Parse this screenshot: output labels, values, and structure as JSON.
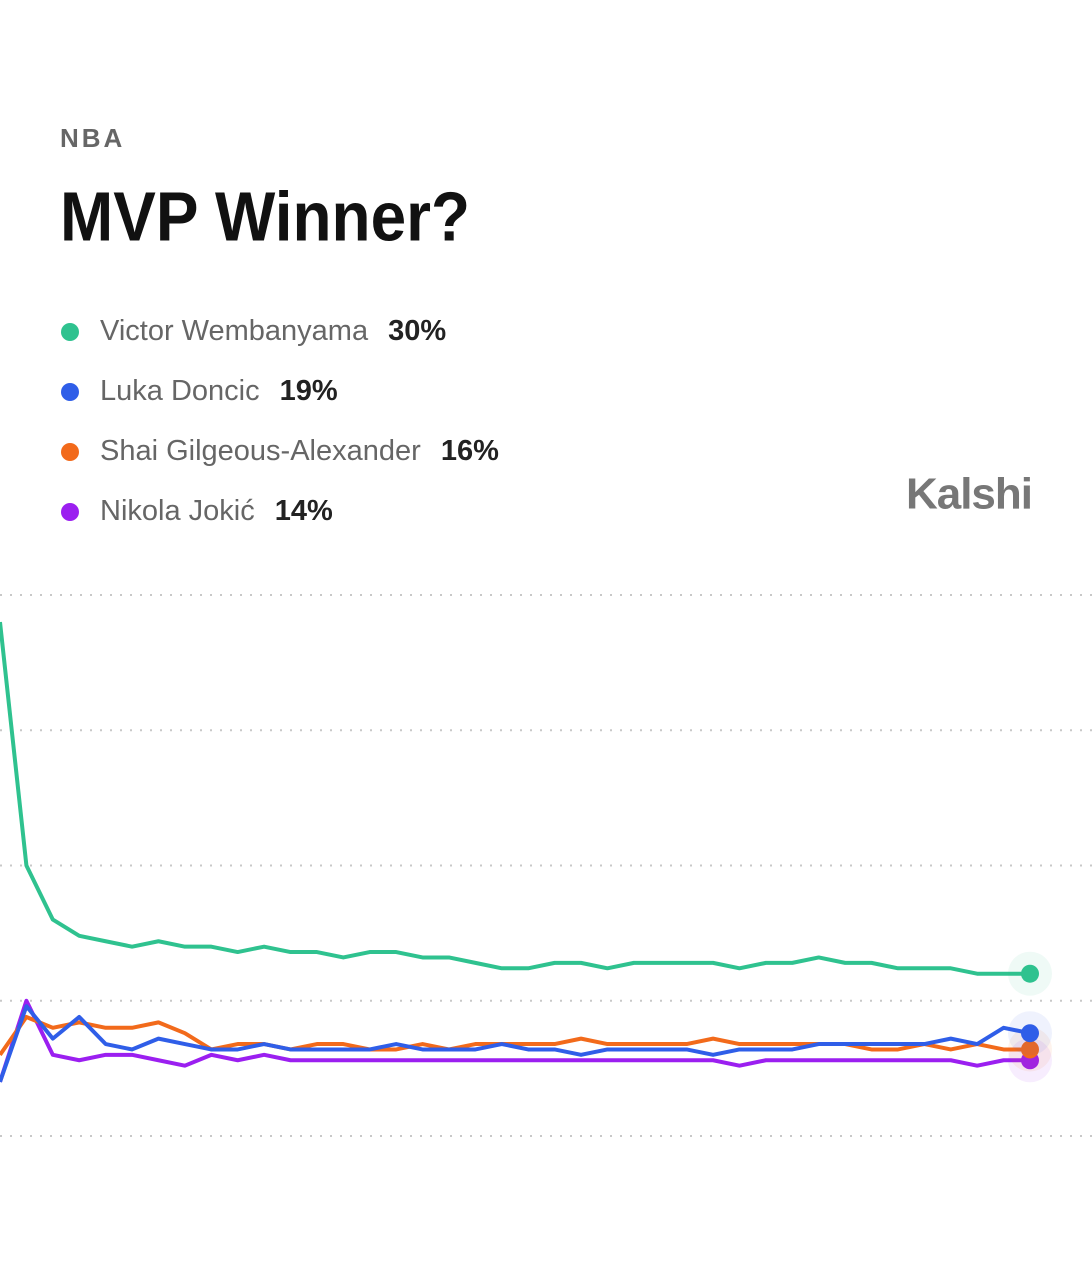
{
  "chart_data": {
    "type": "line",
    "subtitle": "NBA",
    "title": "MVP Winner?",
    "brand": "Kalshi",
    "ylim": [
      0,
      100
    ],
    "yticks": [
      0,
      25,
      50,
      75,
      100
    ],
    "grid": true,
    "series": [
      {
        "name": "Victor Wembanyama",
        "color": "#2fc28f",
        "label": "30%",
        "values": [
          95,
          50,
          40,
          37,
          36,
          35,
          36,
          35,
          35,
          34,
          35,
          34,
          34,
          33,
          34,
          34,
          33,
          33,
          32,
          31,
          31,
          32,
          32,
          31,
          32,
          32,
          32,
          32,
          31,
          32,
          32,
          33,
          32,
          32,
          31,
          31,
          31,
          30,
          30,
          30
        ]
      },
      {
        "name": "Luka Doncic",
        "color": "#2f5ee8",
        "label": "19%",
        "values": [
          10,
          24,
          18,
          22,
          17,
          16,
          18,
          17,
          16,
          16,
          17,
          16,
          16,
          16,
          16,
          17,
          16,
          16,
          16,
          17,
          16,
          16,
          15,
          16,
          16,
          16,
          16,
          15,
          16,
          16,
          16,
          17,
          17,
          17,
          17,
          17,
          18,
          17,
          20,
          19
        ]
      },
      {
        "name": "Shai Gilgeous-Alexander",
        "color": "#f26a1b",
        "label": "16%",
        "values": [
          15,
          22,
          20,
          21,
          20,
          20,
          21,
          19,
          16,
          17,
          17,
          16,
          17,
          17,
          16,
          16,
          17,
          16,
          17,
          17,
          17,
          17,
          18,
          17,
          17,
          17,
          17,
          18,
          17,
          17,
          17,
          17,
          17,
          16,
          16,
          17,
          16,
          17,
          16,
          16
        ]
      },
      {
        "name": "Nikola Jokić",
        "color": "#9b1ff0",
        "label": "14%",
        "values": [
          10,
          25,
          15,
          14,
          15,
          15,
          14,
          13,
          15,
          14,
          15,
          14,
          14,
          14,
          14,
          14,
          14,
          14,
          14,
          14,
          14,
          14,
          14,
          14,
          14,
          14,
          14,
          14,
          13,
          14,
          14,
          14,
          14,
          14,
          14,
          14,
          14,
          13,
          14,
          14
        ]
      }
    ]
  }
}
